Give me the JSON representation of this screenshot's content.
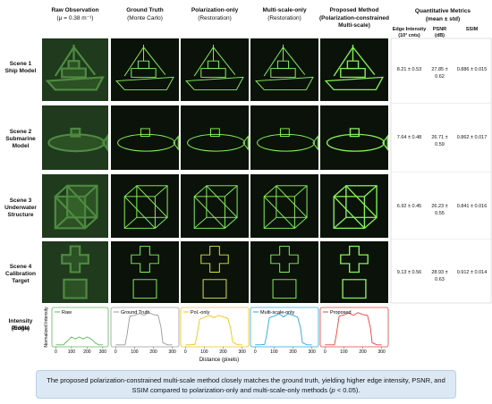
{
  "columns": [
    {
      "title": "Raw Observation",
      "subtitle": "(μ = 0.38 m⁻¹)"
    },
    {
      "title": "Ground Truth",
      "subtitle": "(Monte Carlo)"
    },
    {
      "title": "Polarization-only",
      "subtitle": "(Restoration)"
    },
    {
      "title": "Multi-scale-only",
      "subtitle": "(Restoration)"
    },
    {
      "title": "Proposed Method",
      "subtitle": "(Polarization-constrained Multi-scale)"
    }
  ],
  "metrics": {
    "title": "Quantitative Metrics",
    "subtitle": "(mean ± std)",
    "headers": [
      "Edge Intensity (10³ cnts)",
      "PSNR (dB)",
      "SSIM"
    ]
  },
  "scenes": [
    {
      "name": "Scene 1",
      "label": "Ship Model",
      "metrics": [
        "8.21 ± 0.53",
        "27.85 ± 0.62",
        "0.886 ± 0.015"
      ]
    },
    {
      "name": "Scene 2",
      "label": "Submarine Model",
      "metrics": [
        "7.64 ± 0.48",
        "26.71 ± 0.59",
        "0.862 ± 0.017"
      ]
    },
    {
      "name": "Scene 3",
      "label": "Underwater Structure",
      "metrics": [
        "6.92 ± 0.45",
        "26.23 ± 0.55",
        "0.841 ± 0.016"
      ]
    },
    {
      "name": "Scene 4",
      "label": "Calibration Target",
      "metrics": [
        "9.13 ± 0.56",
        "28.93 ± 0.63",
        "0.912 ± 0.014"
      ]
    }
  ],
  "profile": {
    "label": "Intensity Profile",
    "sublabel": "(Edge)",
    "y_label": "Normalized Intensity",
    "x_label": "Distance (pixels)",
    "x": [
      0,
      25,
      50,
      60,
      75,
      100,
      125,
      150,
      175,
      200,
      225,
      240,
      250,
      275,
      300
    ],
    "xlim": [
      -25,
      335
    ],
    "xticks": [
      0,
      100,
      200,
      300
    ],
    "ylim": [
      0,
      1
    ],
    "series": [
      {
        "name": "Raw",
        "color": "#5cb85c",
        "values": [
          0.05,
          0.05,
          0.05,
          0.1,
          0.15,
          0.25,
          0.2,
          0.25,
          0.2,
          0.25,
          0.2,
          0.15,
          0.1,
          0.05,
          0.05
        ]
      },
      {
        "name": "Ground Truth",
        "color": "#9a9a9a",
        "values": [
          0.05,
          0.05,
          0.05,
          0.3,
          0.78,
          0.8,
          0.85,
          0.8,
          0.87,
          0.82,
          0.8,
          0.5,
          0.1,
          0.05,
          0.05
        ]
      },
      {
        "name": "Pol.-only",
        "color": "#f2c318",
        "values": [
          0.05,
          0.05,
          0.06,
          0.25,
          0.7,
          0.75,
          0.8,
          0.74,
          0.8,
          0.76,
          0.72,
          0.45,
          0.12,
          0.05,
          0.05
        ]
      },
      {
        "name": "Multi-scale-only",
        "color": "#2aa8e0",
        "values": [
          0.05,
          0.05,
          0.06,
          0.28,
          0.74,
          0.78,
          0.84,
          0.76,
          0.84,
          0.8,
          0.75,
          0.48,
          0.1,
          0.05,
          0.05
        ]
      },
      {
        "name": "Proposed",
        "color": "#e8423a",
        "values": [
          0.05,
          0.05,
          0.05,
          0.3,
          0.78,
          0.81,
          0.86,
          0.8,
          0.87,
          0.82,
          0.8,
          0.5,
          0.1,
          0.05,
          0.05
        ]
      }
    ]
  },
  "caption": {
    "before": "The proposed polarization-constrained multi-scale method closely matches the ground truth, yielding higher edge intensity, PSNR, and SSIM compared to polarization-only and multi-scale-only methods (",
    "italic": "p",
    "after": " < 0.05)."
  }
}
